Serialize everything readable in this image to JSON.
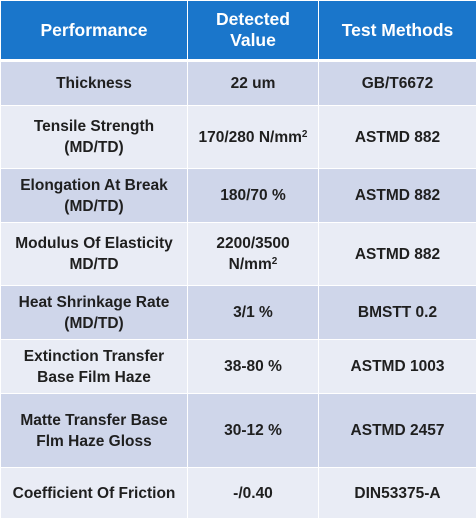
{
  "table": {
    "headers": [
      "Performance",
      "Detected Value",
      "Test Methods"
    ],
    "rows": [
      {
        "performance": "Thickness",
        "value": "22 um",
        "value_sup": "",
        "method": "GB/T6672"
      },
      {
        "performance": "Tensile Strength (MD/TD)",
        "value": "170/280 N/mm",
        "value_sup": "2",
        "method": "ASTMD 882"
      },
      {
        "performance": "Elongation At Break (MD/TD)",
        "value": "180/70 %",
        "value_sup": "",
        "method": "ASTMD 882"
      },
      {
        "performance": "Modulus Of Elasticity MD/TD",
        "value": "2200/3500 N/mm",
        "value_sup": "2",
        "method": "ASTMD 882"
      },
      {
        "performance": "Heat Shrinkage Rate (MD/TD)",
        "value": "3/1 %",
        "value_sup": "",
        "method": "BMSTT 0.2"
      },
      {
        "performance": "Extinction Transfer Base Film Haze",
        "value": "38-80 %",
        "value_sup": "",
        "method": "ASTMD 1003"
      },
      {
        "performance": "Matte Transfer Base Flm Haze Gloss",
        "value": "30-12 %",
        "value_sup": "",
        "method": "ASTMD 2457"
      },
      {
        "performance": "Coefficient Of Friction",
        "value": "-/0.40",
        "value_sup": "",
        "method": "DIN53375-A"
      }
    ]
  },
  "colors": {
    "header_bg": "#1a76cb",
    "header_text": "#ffffff",
    "row_odd_bg": "#cfd6ea",
    "row_even_bg": "#e9ecf5",
    "cell_text": "#1f1f1f"
  }
}
